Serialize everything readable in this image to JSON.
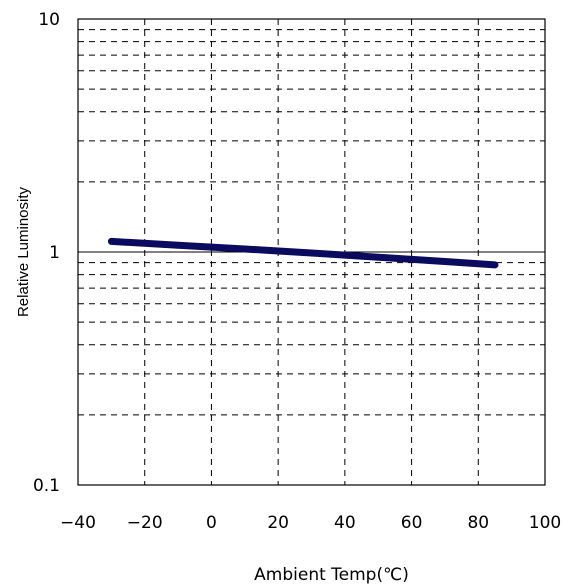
{
  "chart_data": {
    "type": "line",
    "xlabel": "Ambient Temp(℃)",
    "ylabel": "Relative Luminosity",
    "xlim": [
      -40,
      100
    ],
    "ylim": [
      0.1,
      10
    ],
    "yscale": "log",
    "x_ticks": [
      "-40",
      "-20",
      "0",
      "20",
      "40",
      "60",
      "80",
      "100"
    ],
    "y_ticks": [
      "0.1",
      "1",
      "10"
    ],
    "grid": true,
    "grid_style": "dashed",
    "series": [
      {
        "color": "#0a0a5e",
        "x": [
          -30,
          -10,
          10,
          30,
          50,
          70,
          85
        ],
        "y": [
          1.11,
          1.07,
          1.03,
          0.99,
          0.95,
          0.91,
          0.88
        ]
      }
    ]
  }
}
